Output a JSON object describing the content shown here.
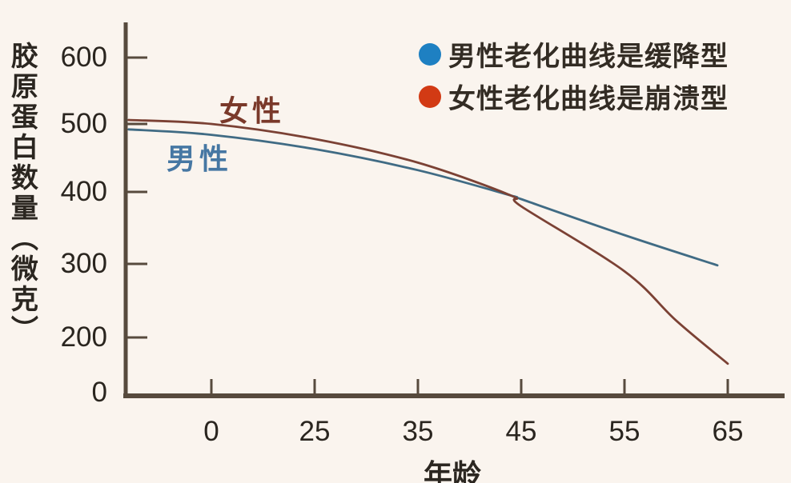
{
  "chart_data": {
    "type": "line",
    "title": "",
    "xlabel": "年龄",
    "ylabel": "胶原蛋白数量（微克）",
    "x_ticks": [
      0,
      25,
      35,
      45,
      55,
      65
    ],
    "y_ticks": [
      0,
      200,
      300,
      400,
      500,
      600
    ],
    "legend_position": "top-right",
    "grid": false,
    "axis_note": "x ticks equally spaced despite unequal intervals; y axis compressed below 200; curves start left of the age-0 tick",
    "series": [
      {
        "name": "男性",
        "legend": "男性老化曲线是缓降型",
        "color": "#1e80c2",
        "label_color": "#4677a3",
        "curve_color": "#406b84",
        "points": [
          [
            -20,
            492
          ],
          [
            0,
            484
          ],
          [
            25,
            463
          ],
          [
            35,
            432
          ],
          [
            44,
            395
          ],
          [
            45,
            390
          ],
          [
            55,
            340
          ],
          [
            64,
            298
          ]
        ],
        "values_at_ticks": [
          484,
          463,
          432,
          390,
          340,
          300
        ]
      },
      {
        "name": "女性",
        "legend": "女性老化曲线是崩溃型",
        "color": "#d23a14",
        "label_color": "#7a392a",
        "curve_color": "#7b4134",
        "points": [
          [
            -20,
            506
          ],
          [
            0,
            500
          ],
          [
            25,
            478
          ],
          [
            35,
            443
          ],
          [
            44,
            395
          ],
          [
            45,
            380
          ],
          [
            55,
            290
          ],
          [
            60,
            223
          ],
          [
            65,
            105
          ]
        ],
        "values_at_ticks": [
          500,
          478,
          443,
          380,
          290,
          105
        ]
      }
    ],
    "crossing": "curves intersect near age 44 at ≈395"
  },
  "colors": {
    "background": "#faf4ee",
    "axis": "#574a3d",
    "tick_text": "#2a251f"
  }
}
